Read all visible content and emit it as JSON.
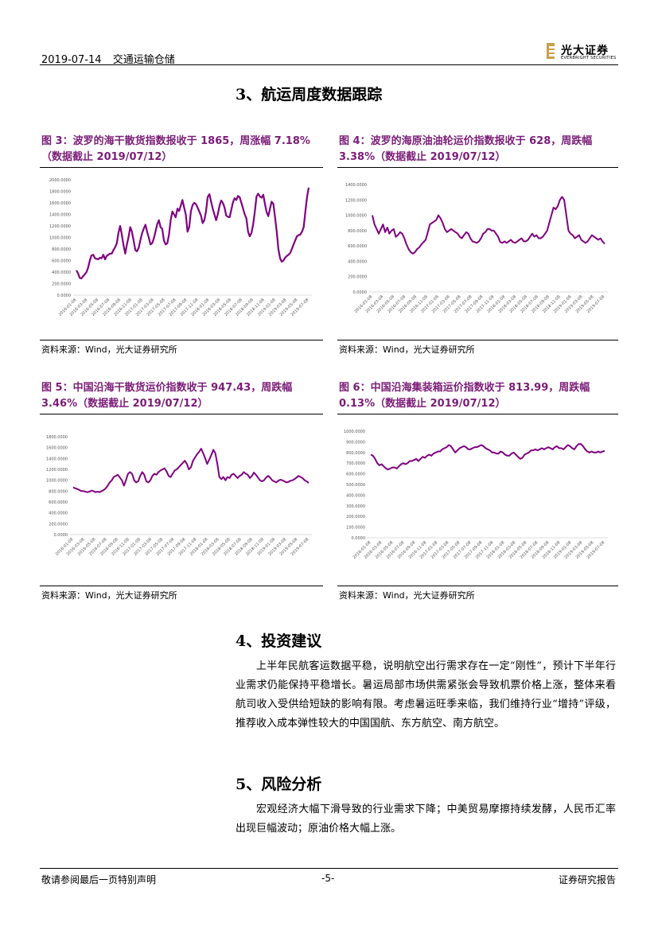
{
  "header": {
    "date": "2019-07-14",
    "sector": "交通运输仓储",
    "logo_cn": "光大证券",
    "logo_en": "EVERBRIGHT SECURITIES",
    "logo_color": "#c8a04a"
  },
  "section3": {
    "title": "3、航运周度数据跟踪"
  },
  "fig3": {
    "caption_line1": "图 3：波罗的海干散货指数报收于 1865，周涨幅 7.18%",
    "caption_line2": "（数据截止 2019/07/12）",
    "source": "资料来源：Wind，光大证券研究所"
  },
  "fig4": {
    "caption_line1": "图 4：波罗的海原油油轮运价指数报收于 628，周跌幅",
    "caption_line2": "3.38%（数据截止 2019/07/12）",
    "source": "资料来源：Wind，光大证券研究所"
  },
  "fig5": {
    "caption_line1": "图 5：中国沿海干散货运价指数收于 947.43，周跌幅",
    "caption_line2": "3.46%（数据截止 2019/07/12）",
    "source": "资料来源：Wind，光大证券研究所"
  },
  "fig6": {
    "caption_line1": "图 6：中国沿海集装箱运价指数收于 813.99，周跌幅",
    "caption_line2": "0.13%（数据截止 2019/07/12）",
    "source": "资料来源：Wind，光大证券研究所"
  },
  "section4": {
    "title": "4、投资建议",
    "body": "上半年民航客运数据平稳，说明航空出行需求存在一定“刚性”，预计下半年行业需求仍能保持平稳增长。暑运局部市场供需紧张会导致机票价格上涨，整体来看航司收入受供给短缺的影响有限。考虑暑运旺季来临，我们维持行业“增持”评级，推荐收入成本弹性较大的中国国航、东方航空、南方航空。"
  },
  "section5": {
    "title": "5、风险分析",
    "body": "宏观经济大幅下滑导致的行业需求下降；中美贸易摩擦持续发酵，人民币汇率出现巨幅波动；原油价格大幅上涨。"
  },
  "footer": {
    "left": "敬请参阅最后一页特别声明",
    "page": "-5-",
    "right": "证券研究报告"
  },
  "chart_data": [
    {
      "id": "fig3",
      "type": "line",
      "color": "#800080",
      "ylim": [
        0,
        2000
      ],
      "yticks": [
        "2000.0000",
        "1800.0000",
        "1600.0000",
        "1400.0000",
        "1200.0000",
        "1000.0000",
        "800.0000",
        "600.0000",
        "400.0000",
        "200.0000",
        "0.0000"
      ],
      "xticks": [
        "2016-01-08",
        "2016-03-08",
        "2016-05-08",
        "2016-07-08",
        "2016-09-08",
        "2016-11-08",
        "2017-01-08",
        "2017-03-08",
        "2017-05-08",
        "2017-07-08",
        "2017-09-08",
        "2017-11-08",
        "2018-01-08",
        "2018-03-08",
        "2018-05-08",
        "2018-07-08",
        "2018-09-08",
        "2018-11-08",
        "2019-01-08",
        "2019-03-08",
        "2019-05-08",
        "2019-07-08"
      ],
      "values": [
        430,
        380,
        300,
        290,
        330,
        360,
        400,
        480,
        600,
        690,
        700,
        640,
        630,
        620,
        650,
        640,
        700,
        620,
        680,
        700,
        720,
        720,
        780,
        830,
        900,
        1080,
        1200,
        1050,
        870,
        720,
        880,
        1010,
        1180,
        1100,
        950,
        780,
        760,
        820,
        950,
        1070,
        1150,
        1220,
        1100,
        1000,
        880,
        900,
        980,
        1100,
        1230,
        1300,
        1180,
        1150,
        950,
        880,
        900,
        1050,
        1300,
        1450,
        1400,
        1350,
        1500,
        1460,
        1550,
        1650,
        1520,
        1400,
        1100,
        1180,
        1450,
        1560,
        1600,
        1580,
        1520,
        1450,
        1380,
        1250,
        1300,
        1450,
        1700,
        1750,
        1620,
        1500,
        1400,
        1300,
        1400,
        1550,
        1640,
        1600,
        1520,
        1380,
        1360,
        1350,
        1480,
        1610,
        1680,
        1650,
        1720,
        1700,
        1600,
        1500,
        1400,
        1330,
        1100,
        1020,
        1080,
        1230,
        1450,
        1710,
        1760,
        1710,
        1690,
        1740,
        1580,
        1440,
        1370,
        1500,
        1620,
        1580,
        1350,
        1100,
        800,
        640,
        580,
        600,
        650,
        680,
        700,
        730,
        800,
        880,
        950,
        1020,
        1040,
        1050,
        1100,
        1180,
        1450,
        1700,
        1865
      ]
    },
    {
      "id": "fig4",
      "type": "line",
      "color": "#800080",
      "ylim": [
        0,
        1400
      ],
      "yticks": [
        "1400.0000",
        "1200.0000",
        "1000.0000",
        "800.0000",
        "600.0000",
        "400.0000",
        "200.0000",
        "0.0000"
      ],
      "xticks": [
        "2016-01-08",
        "2016-03-08",
        "2016-05-08",
        "2016-07-08",
        "2016-09-08",
        "2016-11-08",
        "2017-01-08",
        "2017-03-08",
        "2017-05-08",
        "2017-07-08",
        "2017-09-08",
        "2017-11-08",
        "2018-01-08",
        "2018-03-08",
        "2018-05-08",
        "2018-07-08",
        "2018-09-08",
        "2018-11-08",
        "2019-01-08",
        "2019-03-08",
        "2019-05-08",
        "2019-07-08"
      ],
      "values": [
        1000,
        880,
        820,
        760,
        820,
        880,
        780,
        840,
        760,
        800,
        820,
        720,
        740,
        780,
        760,
        700,
        620,
        560,
        520,
        500,
        520,
        560,
        580,
        620,
        650,
        680,
        780,
        880,
        900,
        920,
        940,
        1000,
        960,
        900,
        820,
        780,
        800,
        820,
        800,
        780,
        760,
        720,
        700,
        740,
        780,
        760,
        700,
        660,
        650,
        640,
        660,
        700,
        760,
        780,
        820,
        820,
        800,
        800,
        760,
        720,
        650,
        640,
        660,
        640,
        660,
        680,
        650,
        640,
        660,
        680,
        700,
        660,
        660,
        680,
        720,
        760,
        720,
        740,
        700,
        700,
        720,
        760,
        800,
        900,
        1000,
        1100,
        1080,
        1120,
        1200,
        1240,
        1200,
        1000,
        800,
        760,
        740,
        700,
        720,
        740,
        680,
        660,
        640,
        660,
        700,
        740,
        720,
        700,
        680,
        700,
        660,
        628
      ]
    },
    {
      "id": "fig5",
      "type": "line",
      "color": "#800080",
      "ylim": [
        0,
        1800
      ],
      "yticks": [
        "1800.0000",
        "1600.0000",
        "1400.0000",
        "1200.0000",
        "1000.0000",
        "800.0000",
        "600.0000",
        "400.0000",
        "200.0000",
        "0.0000"
      ],
      "xticks": [
        "2016-01-08",
        "2016-03-08",
        "2016-05-08",
        "2016-07-08",
        "2016-09-08",
        "2016-11-08",
        "2017-01-08",
        "2017-03-08",
        "2017-05-08",
        "2017-07-08",
        "2017-09-08",
        "2017-11-08",
        "2018-01-08",
        "2018-03-08",
        "2018-05-08",
        "2018-07-08",
        "2018-09-08",
        "2018-11-08",
        "2019-01-08",
        "2019-03-08",
        "2019-05-08",
        "2019-07-08"
      ],
      "values": [
        870,
        850,
        840,
        820,
        800,
        800,
        790,
        780,
        790,
        810,
        800,
        780,
        790,
        780,
        800,
        820,
        850,
        900,
        960,
        1000,
        1060,
        1080,
        1100,
        1050,
        1000,
        900,
        1000,
        1120,
        1150,
        1120,
        1000,
        960,
        980,
        1080,
        1150,
        1100,
        980,
        960,
        1000,
        1080,
        1120,
        1100,
        1150,
        1180,
        1200,
        1220,
        1160,
        1080,
        1060,
        1120,
        1180,
        1200,
        1240,
        1280,
        1320,
        1360,
        1300,
        1200,
        1240,
        1360,
        1420,
        1480,
        1520,
        1580,
        1500,
        1400,
        1300,
        1380,
        1460,
        1560,
        1500,
        1300,
        1060,
        1020,
        1060,
        1000,
        1060,
        1040,
        1100,
        1120,
        1080,
        1040,
        1080,
        1100,
        1150,
        1120,
        1100,
        1040,
        1080,
        1140,
        1100,
        1050,
        1000,
        980,
        1000,
        1050,
        1080,
        1050,
        1000,
        980,
        960,
        990,
        1010,
        1000,
        980,
        960,
        970,
        990,
        1000,
        1020,
        1050,
        1080,
        1060,
        1040,
        1000,
        980,
        947
      ]
    },
    {
      "id": "fig6",
      "type": "line",
      "color": "#800080",
      "ylim": [
        0,
        1000
      ],
      "yticks": [
        "1000.0000",
        "900.0000",
        "800.0000",
        "700.0000",
        "600.0000",
        "500.0000",
        "400.0000",
        "300.0000",
        "200.0000",
        "100.0000",
        "0.0000"
      ],
      "xticks": [
        "2016-01-08",
        "2016-03-08",
        "2016-05-08",
        "2016-07-08",
        "2016-09-08",
        "2016-11-08",
        "2017-01-08",
        "2017-03-08",
        "2017-05-08",
        "2017-07-08",
        "2017-09-08",
        "2017-11-08",
        "2018-01-08",
        "2018-03-08",
        "2018-05-08",
        "2018-07-08",
        "2018-09-08",
        "2018-11-08",
        "2019-01-08",
        "2019-03-08",
        "2019-05-08",
        "2019-07-08"
      ],
      "values": [
        780,
        770,
        740,
        700,
        680,
        690,
        670,
        650,
        640,
        650,
        660,
        660,
        650,
        670,
        690,
        700,
        690,
        700,
        720,
        720,
        730,
        740,
        720,
        740,
        760,
        750,
        770,
        780,
        770,
        790,
        800,
        810,
        810,
        830,
        840,
        850,
        870,
        860,
        830,
        800,
        820,
        840,
        850,
        860,
        850,
        830,
        830,
        840,
        850,
        850,
        860,
        870,
        860,
        840,
        830,
        820,
        800,
        800,
        790,
        790,
        810,
        800,
        780,
        770,
        770,
        790,
        800,
        780,
        760,
        740,
        750,
        780,
        790,
        800,
        820,
        820,
        830,
        820,
        830,
        840,
        830,
        840,
        850,
        840,
        830,
        850,
        860,
        840,
        840,
        830,
        850,
        870,
        860,
        840,
        830,
        860,
        880,
        880,
        860,
        830,
        810,
        800,
        810,
        800,
        800,
        810,
        800,
        810,
        814
      ]
    }
  ]
}
